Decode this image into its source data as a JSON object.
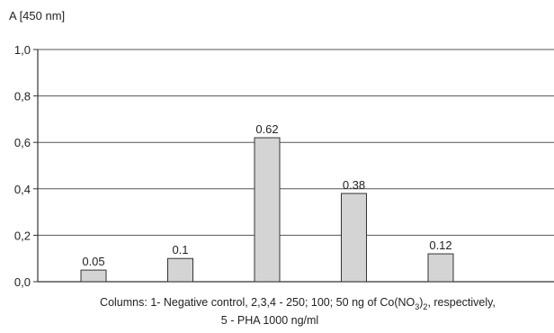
{
  "chart_data": {
    "type": "bar",
    "ylabel": "A [450 nm]",
    "ylim": [
      0,
      1.0
    ],
    "ytick_values": [
      0,
      0.2,
      0.4,
      0.6,
      0.8,
      1.0
    ],
    "ytick_labels": [
      "0,0",
      "0,2",
      "0,4",
      "0,6",
      "0,8",
      "1,0"
    ],
    "grid": true,
    "values": [
      0.05,
      0.1,
      0.62,
      0.38,
      0.12
    ],
    "value_labels": [
      "0.05",
      "0.1",
      "0.62",
      "0.38",
      "0.12"
    ],
    "caption": {
      "line1_prefix": "Columns: 1- Negative control, 2,3,4  - 250; 100; 50 ng of Co(NO",
      "line1_sub1": "3",
      "line1_mid": ")",
      "line1_sub2": "2",
      "line1_suffix": ", respectively,",
      "line2": "5 - PHA 1000 ng/ml"
    },
    "colors": {
      "bar_fill": "#d4d4d4",
      "bar_stroke": "#333333",
      "grid": "#555555",
      "axis": "#333333"
    }
  }
}
